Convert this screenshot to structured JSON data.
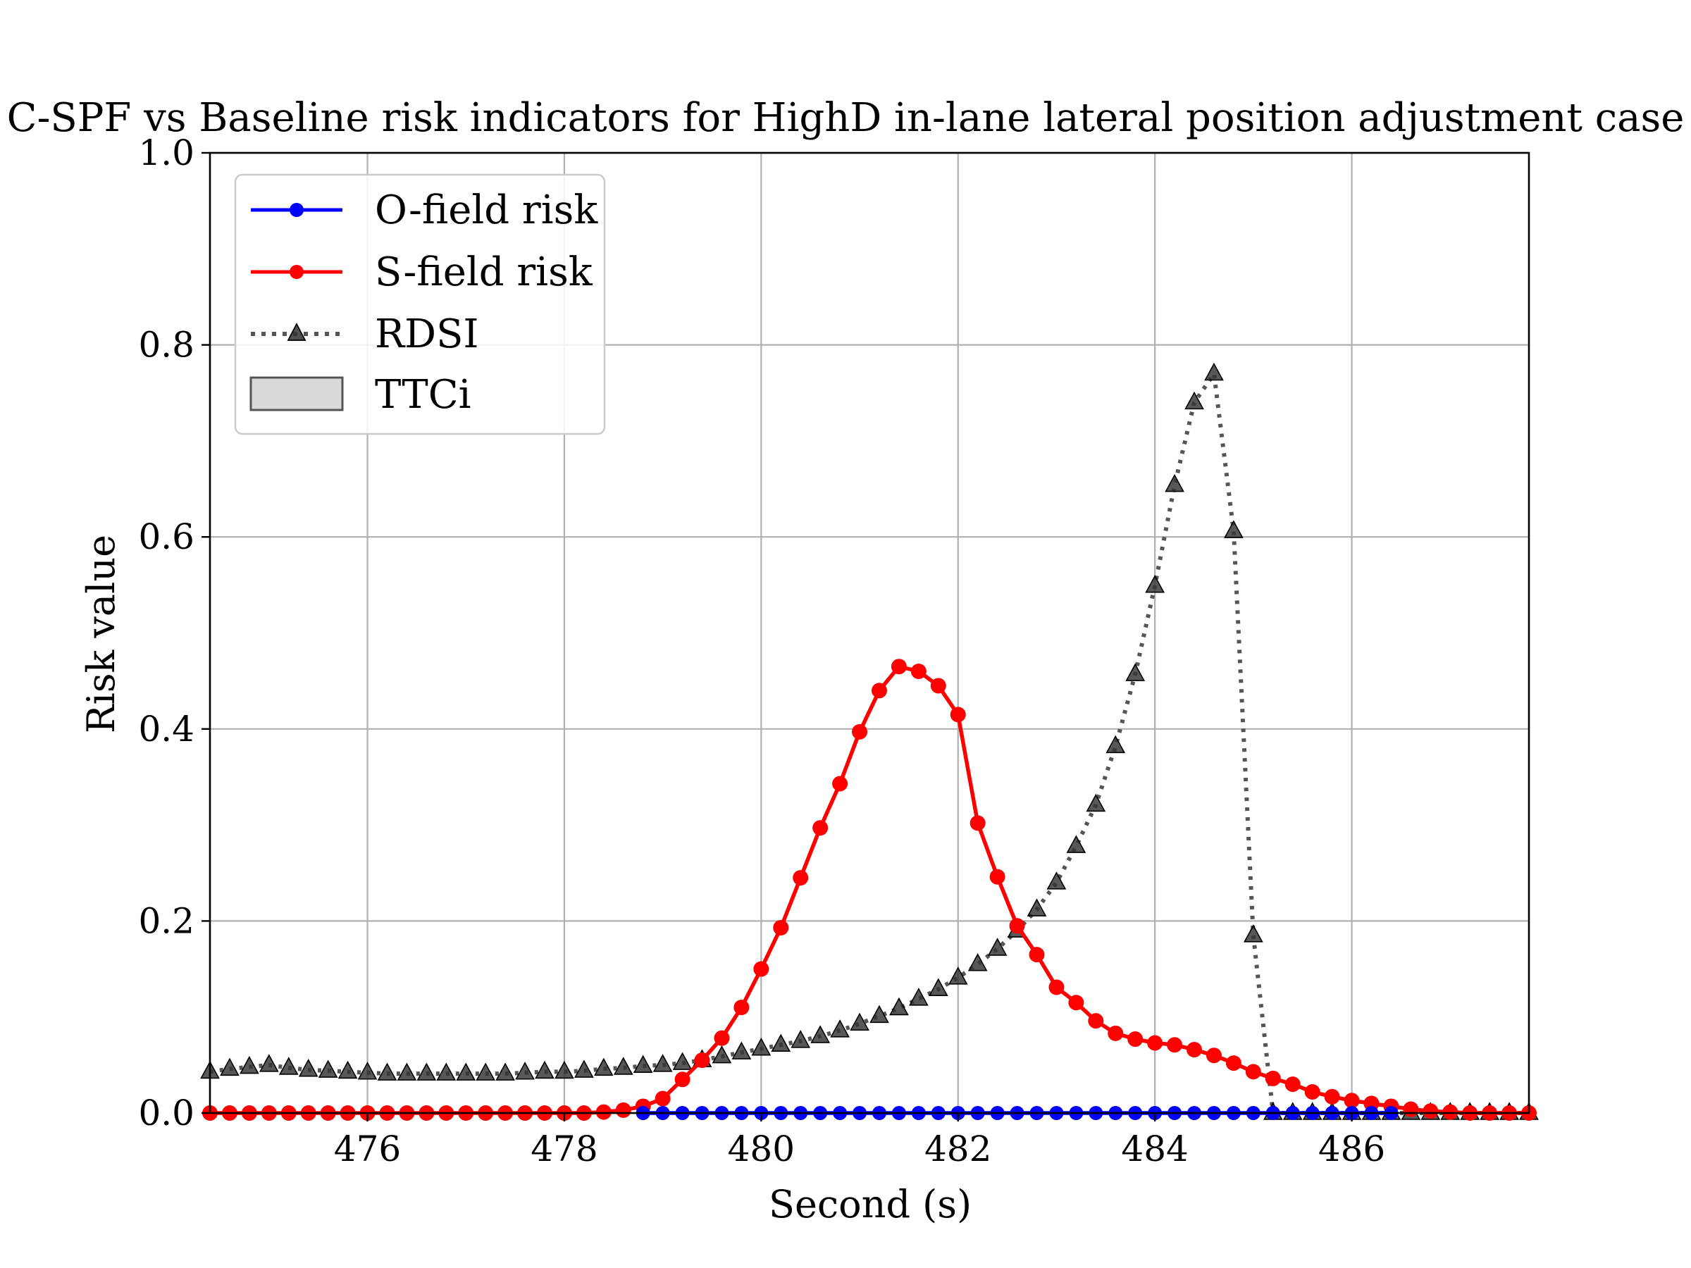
{
  "chart_data": {
    "type": "line",
    "title": "C-SPF vs Baseline risk indicators for HighD in-lane lateral position adjustment case",
    "xlabel": "Second (s)",
    "ylabel": "Risk value",
    "xlim": [
      474.4,
      487.8
    ],
    "ylim": [
      0.0,
      1.0
    ],
    "x_ticks": [
      476,
      478,
      480,
      482,
      484,
      486
    ],
    "x_tick_labels": [
      "476",
      "478",
      "480",
      "482",
      "484",
      "486"
    ],
    "y_ticks": [
      0.0,
      0.2,
      0.4,
      0.6,
      0.8,
      1.0
    ],
    "y_tick_labels": [
      "0.0",
      "0.2",
      "0.4",
      "0.6",
      "0.8",
      "1.0"
    ],
    "grid": true,
    "legend_position": "top-left",
    "legend": [
      "O-field risk",
      "S-field risk",
      "RDSI",
      "TTCi"
    ],
    "colors": {
      "o_field": "#0000ff",
      "s_field": "#ff0000",
      "rdsi": "#555555",
      "ttci_fill": "#d9d9d9",
      "ttci_edge": "#555555",
      "grid": "#b0b0b0"
    },
    "series": [
      {
        "name": "O-field risk",
        "style": "solid line with circle markers",
        "x": [
          478.8,
          479.0,
          479.2,
          479.4,
          479.6,
          479.8,
          480.0,
          480.2,
          480.4,
          480.6,
          480.8,
          481.0,
          481.2,
          481.4,
          481.6,
          481.8,
          482.0,
          482.2,
          482.4,
          482.6,
          482.8,
          483.0,
          483.2,
          483.4,
          483.6,
          483.8,
          484.0,
          484.2,
          484.4,
          484.6,
          484.8,
          485.0,
          485.2,
          485.4,
          485.6,
          485.8,
          486.0,
          486.2,
          486.4
        ],
        "y": [
          0,
          0,
          0,
          0,
          0,
          0,
          0,
          0,
          0,
          0,
          0,
          0,
          0,
          0,
          0,
          0,
          0,
          0,
          0,
          0,
          0,
          0,
          0,
          0,
          0,
          0,
          0,
          0,
          0,
          0,
          0,
          0,
          0,
          0,
          0,
          0,
          0,
          0,
          0
        ]
      },
      {
        "name": "S-field risk",
        "style": "solid line with circle markers",
        "x": [
          474.4,
          474.6,
          474.8,
          475.0,
          475.2,
          475.4,
          475.6,
          475.8,
          476.0,
          476.2,
          476.4,
          476.6,
          476.8,
          477.0,
          477.2,
          477.4,
          477.6,
          477.8,
          478.0,
          478.2,
          478.4,
          478.6,
          478.8,
          479.0,
          479.2,
          479.4,
          479.6,
          479.8,
          480.0,
          480.2,
          480.4,
          480.6,
          480.8,
          481.0,
          481.2,
          481.4,
          481.6,
          481.8,
          482.0,
          482.2,
          482.4,
          482.6,
          482.8,
          483.0,
          483.2,
          483.4,
          483.6,
          483.8,
          484.0,
          484.2,
          484.4,
          484.6,
          484.8,
          485.0,
          485.2,
          485.4,
          485.6,
          485.8,
          486.0,
          486.2,
          486.4,
          486.6,
          486.8,
          487.0,
          487.2,
          487.4,
          487.6,
          487.8
        ],
        "y": [
          0.0,
          0.0,
          0.0,
          0.0,
          0.0,
          0.0,
          0.0,
          0.0,
          0.0,
          0.0,
          0.0,
          0.0,
          0.0,
          0.0,
          0.0,
          0.0,
          0.0,
          0.0,
          0.0,
          0.0,
          0.001,
          0.003,
          0.007,
          0.015,
          0.035,
          0.055,
          0.078,
          0.11,
          0.15,
          0.193,
          0.245,
          0.297,
          0.343,
          0.397,
          0.44,
          0.465,
          0.46,
          0.445,
          0.415,
          0.302,
          0.246,
          0.195,
          0.165,
          0.131,
          0.115,
          0.096,
          0.083,
          0.077,
          0.073,
          0.071,
          0.066,
          0.06,
          0.052,
          0.043,
          0.036,
          0.03,
          0.022,
          0.017,
          0.013,
          0.01,
          0.007,
          0.004,
          0.002,
          0.001,
          0.0,
          0.0,
          0.0,
          0.0
        ]
      },
      {
        "name": "RDSI",
        "style": "dotted line with triangle markers",
        "x": [
          474.4,
          474.6,
          474.8,
          475.0,
          475.2,
          475.4,
          475.6,
          475.8,
          476.0,
          476.2,
          476.4,
          476.6,
          476.8,
          477.0,
          477.2,
          477.4,
          477.6,
          477.8,
          478.0,
          478.2,
          478.4,
          478.6,
          478.8,
          479.0,
          479.2,
          479.4,
          479.6,
          479.8,
          480.0,
          480.2,
          480.4,
          480.6,
          480.8,
          481.0,
          481.2,
          481.4,
          481.6,
          481.8,
          482.0,
          482.2,
          482.4,
          482.6,
          482.8,
          483.0,
          483.2,
          483.4,
          483.6,
          483.8,
          484.0,
          484.2,
          484.4,
          484.6,
          484.8,
          485.0,
          485.2,
          485.4,
          485.6,
          485.8,
          486.0,
          486.2,
          486.4,
          486.6,
          486.8,
          487.0,
          487.2,
          487.4,
          487.6,
          487.8
        ],
        "y": [
          0.043,
          0.046,
          0.048,
          0.05,
          0.047,
          0.045,
          0.044,
          0.043,
          0.042,
          0.041,
          0.041,
          0.041,
          0.041,
          0.041,
          0.041,
          0.041,
          0.042,
          0.043,
          0.043,
          0.044,
          0.046,
          0.047,
          0.049,
          0.05,
          0.052,
          0.055,
          0.059,
          0.063,
          0.067,
          0.071,
          0.075,
          0.08,
          0.086,
          0.093,
          0.101,
          0.109,
          0.119,
          0.129,
          0.141,
          0.155,
          0.171,
          0.19,
          0.212,
          0.24,
          0.278,
          0.321,
          0.382,
          0.457,
          0.549,
          0.654,
          0.74,
          0.77,
          0.606,
          0.185,
          0.0,
          0.0,
          0.0,
          0.0,
          0.0,
          0.0,
          0.0,
          0.0,
          0.0,
          0.0,
          0.0,
          0.0,
          0.0,
          0.0
        ]
      },
      {
        "name": "TTCi",
        "style": "filled area",
        "x": [
          474.4,
          487.8
        ],
        "y": [
          0.0,
          0.0
        ]
      }
    ]
  }
}
